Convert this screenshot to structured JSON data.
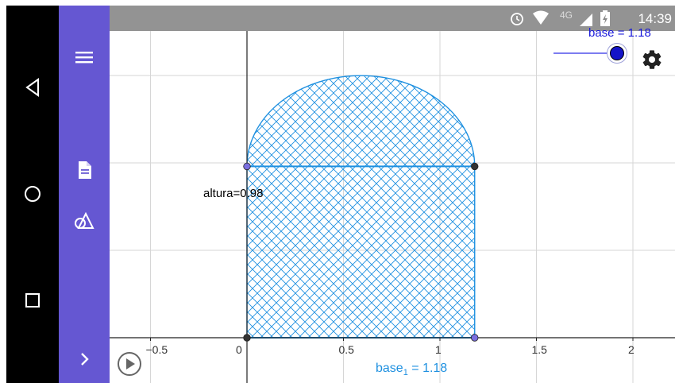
{
  "status_bar": {
    "time": "14:39",
    "icons": [
      "alarm-icon",
      "wifi-icon",
      "signal-4g-icon",
      "battery-charging-icon"
    ],
    "network_label": "4G"
  },
  "nav_bar": {
    "buttons": [
      "back-triangle-icon",
      "home-circle-icon",
      "recents-square-icon"
    ]
  },
  "toolbar": {
    "buttons": [
      "menu-icon",
      "file-icon",
      "geometry-tools-icon",
      "chevron-right-icon"
    ],
    "color": "#6557d2"
  },
  "slider": {
    "label": "base = 1.18",
    "name": "base",
    "value": 1.18
  },
  "labels": {
    "altura": "altura=0.98",
    "base1_main": "base",
    "base1_sub": "1",
    "base1_value": " = 1.18"
  },
  "axes": {
    "x_ticks": [
      "−0.5",
      "0",
      "0.5",
      "1",
      "1.5",
      "2"
    ],
    "x_tick_values": [
      -0.5,
      0,
      0.5,
      1,
      1.5,
      2
    ],
    "grid": true
  },
  "shape": {
    "base": 1.18,
    "altura": 0.98,
    "fill_color": "#1e90e0",
    "points": [
      {
        "name": "bottom-left",
        "x": 0,
        "y": 0,
        "color": "#333333"
      },
      {
        "name": "bottom-right",
        "x": 1.18,
        "y": 0,
        "color": "#7a6fe0"
      },
      {
        "name": "top-left",
        "x": 0,
        "y": 0.98,
        "color": "#7a6fe0"
      },
      {
        "name": "top-right",
        "x": 1.18,
        "y": 0.98,
        "color": "#333333"
      }
    ]
  }
}
